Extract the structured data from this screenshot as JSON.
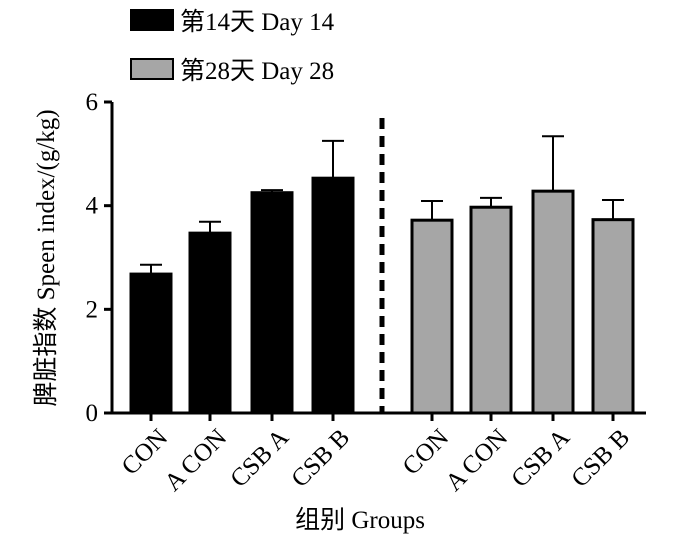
{
  "chart_data": {
    "type": "bar",
    "ylabel": "脾脏指数  Speen index/(g/kg)",
    "xlabel": "组别 Groups",
    "ylim": [
      0,
      6
    ],
    "yticks": [
      "0",
      "2",
      "4",
      "6"
    ],
    "grid": false,
    "legend_position": "top-left",
    "series": [
      {
        "name": "第14天 Day 14",
        "color": "#000000",
        "categories": [
          "CON",
          "A CON",
          "CSB A",
          "CSB B"
        ],
        "values": [
          2.68,
          3.47,
          4.25,
          4.53
        ],
        "errors": [
          0.18,
          0.22,
          0.05,
          0.72
        ]
      },
      {
        "name": "第28天 Day 28",
        "color": "#a6a6a6",
        "categories": [
          "CON",
          "A CON",
          "CSB A",
          "CSB B"
        ],
        "values": [
          3.72,
          3.97,
          4.28,
          3.73
        ],
        "errors": [
          0.37,
          0.18,
          1.06,
          0.38
        ]
      }
    ]
  }
}
